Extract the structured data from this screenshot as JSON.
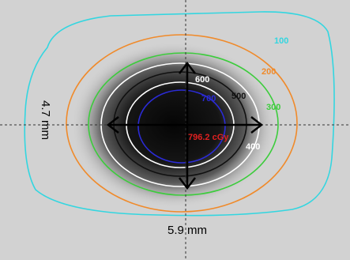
{
  "isodose_lines": [
    {
      "label": "100",
      "color": "#33d6e0"
    },
    {
      "label": "200",
      "color": "#f08a2a"
    },
    {
      "label": "300",
      "color": "#3ccc3c"
    },
    {
      "label": "400",
      "color": "#ffffff"
    },
    {
      "label": "500",
      "color": "#111111"
    },
    {
      "label": "600",
      "color": "#ffffff"
    },
    {
      "label": "700",
      "color": "#2b2bd6"
    }
  ],
  "point_dose": {
    "label": "796.2 cGy",
    "color": "#e02020"
  },
  "dimensions": {
    "vertical": "4.7 mm",
    "horizontal": "5.9 mm"
  }
}
